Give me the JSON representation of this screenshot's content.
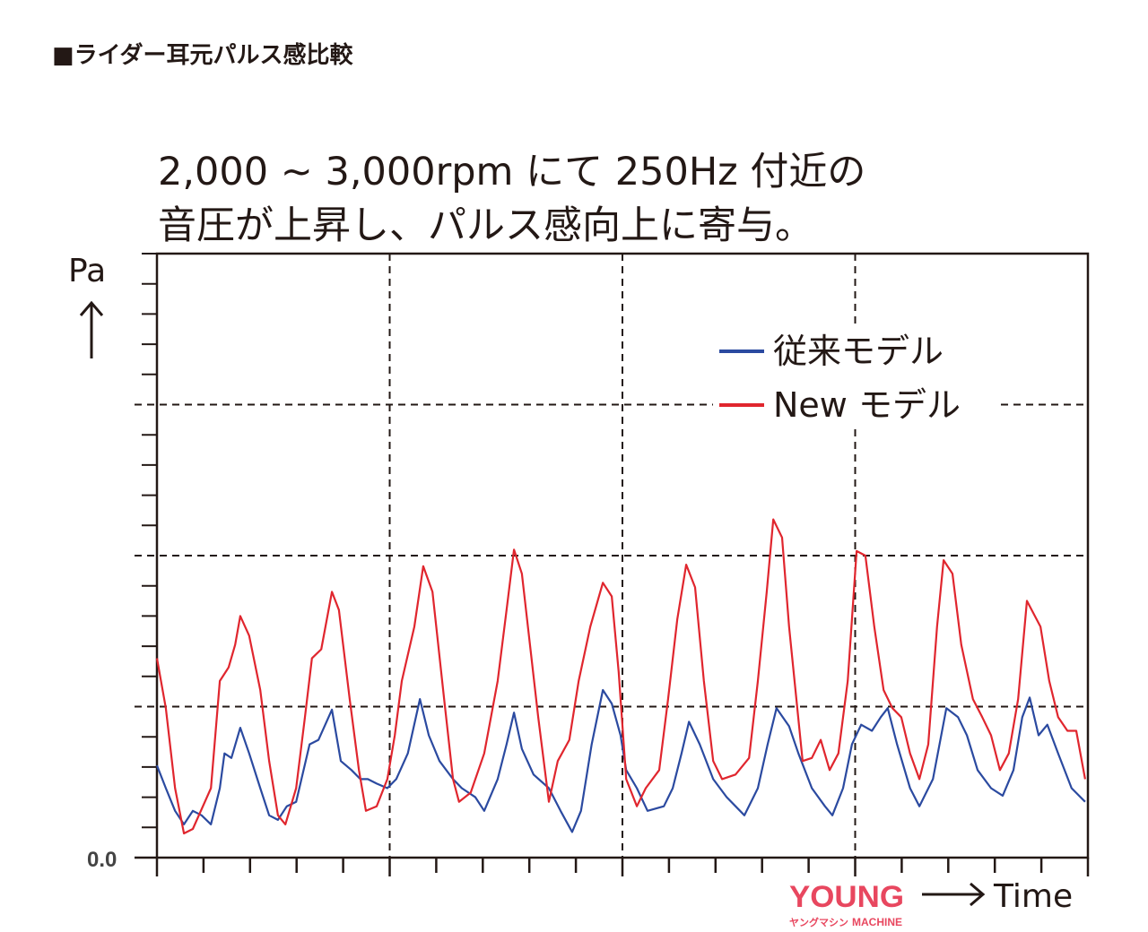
{
  "header": "■ライダー耳元パルス感比較",
  "chart_data": {
    "type": "line",
    "title": [
      "2,000 ~ 3,000rpm にて 250Hz 付近の",
      "音圧が上昇し、パルス感向上に寄与。"
    ],
    "ylabel": "Pa",
    "xlabel": "Time",
    "y_tick_labels": [
      "0.0"
    ],
    "xlim": [
      0,
      20
    ],
    "ylim": [
      0,
      4
    ],
    "grid": true,
    "legend_placement": "top-right",
    "colors": {
      "blue": "#2b4aa0",
      "red": "#e0262e"
    },
    "series": [
      {
        "name": "従来モデル",
        "color": "#2b4aa0",
        "points": [
          [
            0,
            0.61
          ],
          [
            0.19,
            0.46
          ],
          [
            0.39,
            0.31
          ],
          [
            0.58,
            0.22
          ],
          [
            0.77,
            0.31
          ],
          [
            0.96,
            0.28
          ],
          [
            1.16,
            0.22
          ],
          [
            1.35,
            0.46
          ],
          [
            1.45,
            0.69
          ],
          [
            1.6,
            0.66
          ],
          [
            1.79,
            0.86
          ],
          [
            1.98,
            0.69
          ],
          [
            2.22,
            0.46
          ],
          [
            2.41,
            0.28
          ],
          [
            2.6,
            0.25
          ],
          [
            2.79,
            0.34
          ],
          [
            2.99,
            0.37
          ],
          [
            3.28,
            0.75
          ],
          [
            3.47,
            0.78
          ],
          [
            3.76,
            0.98
          ],
          [
            3.95,
            0.64
          ],
          [
            4.18,
            0.58
          ],
          [
            4.37,
            0.52
          ],
          [
            4.53,
            0.52
          ],
          [
            4.72,
            0.49
          ],
          [
            4.95,
            0.46
          ],
          [
            5.14,
            0.52
          ],
          [
            5.39,
            0.69
          ],
          [
            5.65,
            1.05
          ],
          [
            5.84,
            0.81
          ],
          [
            6.07,
            0.64
          ],
          [
            6.36,
            0.52
          ],
          [
            6.55,
            0.46
          ],
          [
            6.84,
            0.4
          ],
          [
            7.03,
            0.31
          ],
          [
            7.32,
            0.52
          ],
          [
            7.51,
            0.75
          ],
          [
            7.67,
            0.96
          ],
          [
            7.84,
            0.72
          ],
          [
            8.09,
            0.55
          ],
          [
            8.42,
            0.46
          ],
          [
            8.67,
            0.31
          ],
          [
            8.92,
            0.17
          ],
          [
            9.11,
            0.31
          ],
          [
            9.34,
            0.75
          ],
          [
            9.58,
            1.11
          ],
          [
            9.77,
            1.02
          ],
          [
            9.96,
            0.81
          ],
          [
            10.08,
            0.58
          ],
          [
            10.31,
            0.46
          ],
          [
            10.54,
            0.31
          ],
          [
            10.89,
            0.34
          ],
          [
            11.08,
            0.46
          ],
          [
            11.27,
            0.69
          ],
          [
            11.43,
            0.9
          ],
          [
            11.66,
            0.75
          ],
          [
            11.95,
            0.52
          ],
          [
            12.24,
            0.4
          ],
          [
            12.62,
            0.28
          ],
          [
            12.91,
            0.46
          ],
          [
            13.12,
            0.75
          ],
          [
            13.31,
            0.99
          ],
          [
            13.58,
            0.87
          ],
          [
            13.78,
            0.69
          ],
          [
            14.07,
            0.46
          ],
          [
            14.35,
            0.34
          ],
          [
            14.51,
            0.28
          ],
          [
            14.74,
            0.46
          ],
          [
            14.93,
            0.75
          ],
          [
            15.13,
            0.88
          ],
          [
            15.36,
            0.84
          ],
          [
            15.55,
            0.93
          ],
          [
            15.7,
            0.99
          ],
          [
            15.9,
            0.75
          ],
          [
            16.18,
            0.46
          ],
          [
            16.38,
            0.34
          ],
          [
            16.67,
            0.52
          ],
          [
            16.96,
            0.99
          ],
          [
            17.21,
            0.93
          ],
          [
            17.4,
            0.81
          ],
          [
            17.63,
            0.58
          ],
          [
            17.92,
            0.46
          ],
          [
            18.17,
            0.41
          ],
          [
            18.4,
            0.58
          ],
          [
            18.59,
            0.93
          ],
          [
            18.75,
            1.06
          ],
          [
            18.94,
            0.81
          ],
          [
            19.13,
            0.88
          ],
          [
            19.36,
            0.69
          ],
          [
            19.65,
            0.46
          ],
          [
            19.94,
            0.37
          ]
        ]
      },
      {
        "name": "New モデル",
        "color": "#e0262e",
        "points": [
          [
            0,
            1.32
          ],
          [
            0.19,
            0.99
          ],
          [
            0.39,
            0.46
          ],
          [
            0.58,
            0.16
          ],
          [
            0.77,
            0.19
          ],
          [
            1.16,
            0.46
          ],
          [
            1.35,
            1.17
          ],
          [
            1.54,
            1.26
          ],
          [
            1.68,
            1.41
          ],
          [
            1.79,
            1.6
          ],
          [
            1.98,
            1.47
          ],
          [
            2.22,
            1.11
          ],
          [
            2.41,
            0.64
          ],
          [
            2.6,
            0.28
          ],
          [
            2.76,
            0.22
          ],
          [
            2.99,
            0.46
          ],
          [
            3.18,
            0.93
          ],
          [
            3.33,
            1.32
          ],
          [
            3.53,
            1.38
          ],
          [
            3.76,
            1.76
          ],
          [
            3.91,
            1.64
          ],
          [
            4.14,
            1.05
          ],
          [
            4.34,
            0.58
          ],
          [
            4.49,
            0.31
          ],
          [
            4.72,
            0.34
          ],
          [
            4.95,
            0.52
          ],
          [
            5.11,
            0.81
          ],
          [
            5.26,
            1.17
          ],
          [
            5.53,
            1.53
          ],
          [
            5.72,
            1.93
          ],
          [
            5.92,
            1.76
          ],
          [
            6.17,
            1.05
          ],
          [
            6.36,
            0.52
          ],
          [
            6.49,
            0.37
          ],
          [
            6.74,
            0.43
          ],
          [
            7.03,
            0.69
          ],
          [
            7.32,
            1.17
          ],
          [
            7.51,
            1.64
          ],
          [
            7.67,
            2.04
          ],
          [
            7.84,
            1.88
          ],
          [
            8.19,
            0.93
          ],
          [
            8.42,
            0.37
          ],
          [
            8.61,
            0.64
          ],
          [
            8.86,
            0.78
          ],
          [
            9.06,
            1.17
          ],
          [
            9.31,
            1.53
          ],
          [
            9.58,
            1.82
          ],
          [
            9.77,
            1.73
          ],
          [
            9.92,
            1.23
          ],
          [
            10.08,
            0.52
          ],
          [
            10.31,
            0.34
          ],
          [
            10.5,
            0.46
          ],
          [
            10.79,
            0.58
          ],
          [
            10.98,
            1.05
          ],
          [
            11.18,
            1.58
          ],
          [
            11.37,
            1.94
          ],
          [
            11.56,
            1.79
          ],
          [
            11.75,
            1.17
          ],
          [
            11.95,
            0.64
          ],
          [
            12.14,
            0.52
          ],
          [
            12.43,
            0.55
          ],
          [
            12.72,
            0.66
          ],
          [
            12.91,
            1.17
          ],
          [
            13.1,
            1.76
          ],
          [
            13.24,
            2.24
          ],
          [
            13.43,
            2.12
          ],
          [
            13.58,
            1.53
          ],
          [
            13.87,
            0.64
          ],
          [
            14.07,
            0.66
          ],
          [
            14.26,
            0.78
          ],
          [
            14.45,
            0.58
          ],
          [
            14.64,
            0.69
          ],
          [
            14.84,
            1.17
          ],
          [
            15.03,
            2.03
          ],
          [
            15.22,
            2.0
          ],
          [
            15.41,
            1.53
          ],
          [
            15.61,
            1.11
          ],
          [
            15.8,
            0.99
          ],
          [
            15.99,
            0.93
          ],
          [
            16.18,
            0.69
          ],
          [
            16.38,
            0.52
          ],
          [
            16.57,
            0.75
          ],
          [
            16.76,
            1.53
          ],
          [
            16.9,
            1.97
          ],
          [
            17.09,
            1.88
          ],
          [
            17.28,
            1.41
          ],
          [
            17.53,
            1.05
          ],
          [
            17.73,
            0.93
          ],
          [
            17.92,
            0.81
          ],
          [
            18.11,
            0.58
          ],
          [
            18.3,
            0.69
          ],
          [
            18.5,
            1.05
          ],
          [
            18.69,
            1.7
          ],
          [
            18.98,
            1.53
          ],
          [
            19.17,
            1.17
          ],
          [
            19.36,
            0.93
          ],
          [
            19.56,
            0.84
          ],
          [
            19.75,
            0.84
          ],
          [
            19.94,
            0.52
          ]
        ]
      }
    ]
  },
  "watermark": {
    "main": "YOUNG",
    "sub": "MACHINE",
    "kana": "ヤングマシン"
  }
}
